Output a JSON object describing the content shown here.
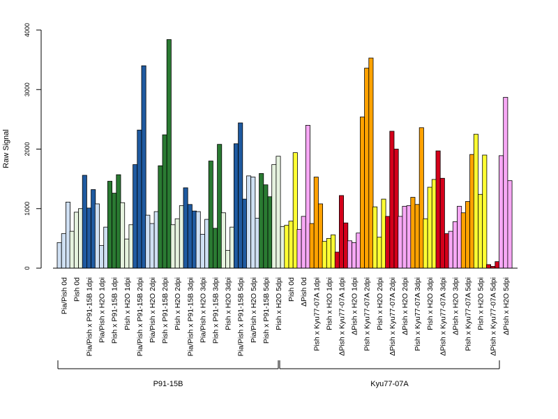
{
  "chart_data": {
    "type": "bar",
    "ylabel": "Raw Signal",
    "ylim": [
      0,
      4000
    ],
    "yticks": [
      0,
      1000,
      2000,
      3000,
      4000
    ],
    "legend": "none",
    "grid": false,
    "groups": [
      {
        "label": "P91-15B",
        "first": 0,
        "last": 15
      },
      {
        "label": "Kyu77-07A",
        "first": 16,
        "last": 31
      }
    ],
    "categories": [
      {
        "label": "Pia/Pish 0d",
        "color": "#cfe0f3",
        "values": [
          430,
          580,
          1110
        ]
      },
      {
        "label": "Pish 0d",
        "color": "#e6f3df",
        "values": [
          620,
          940,
          1000
        ]
      },
      {
        "label": "Pia/Pish x P91-15B 1dpi",
        "color": "#1f5aa0",
        "values": [
          1560,
          1010,
          1320
        ]
      },
      {
        "label": "Pia/Pish x H2O 1dpi",
        "color": "#cfe0f3",
        "values": [
          1080,
          380,
          690
        ]
      },
      {
        "label": "Pish x P91-15B 1dpi",
        "color": "#2a7a32",
        "values": [
          1460,
          1260,
          1570
        ]
      },
      {
        "label": "Pish x H2O 1dpi",
        "color": "#e6f3df",
        "values": [
          1100,
          490,
          730
        ]
      },
      {
        "label": "Pia/Pish x P91-15B 2dpi",
        "color": "#1f5aa0",
        "values": [
          1740,
          2320,
          3400
        ]
      },
      {
        "label": "Pia/Pish x H2O 2dpi",
        "color": "#cfe0f3",
        "values": [
          890,
          750,
          950
        ]
      },
      {
        "label": "Pish x P91-15B 2dpi",
        "color": "#2a7a32",
        "values": [
          1720,
          2240,
          3840
        ]
      },
      {
        "label": "Pish x H2O 2dpi",
        "color": "#e6f3df",
        "values": [
          730,
          830,
          1050
        ]
      },
      {
        "label": "Pia/Pish x P91-15B 3dpi",
        "color": "#1f5aa0",
        "values": [
          1350,
          1070,
          960
        ]
      },
      {
        "label": "Pia/Pish x H2O 3dpi",
        "color": "#cfe0f3",
        "values": [
          950,
          570,
          820
        ]
      },
      {
        "label": "Pish x P91-15B 3dpi",
        "color": "#2a7a32",
        "values": [
          1800,
          670,
          2080
        ]
      },
      {
        "label": "Pish x H2O 3dpi",
        "color": "#e6f3df",
        "values": [
          930,
          300,
          690
        ]
      },
      {
        "label": "Pia/Pish x P91-15B 5dpi",
        "color": "#1f5aa0",
        "values": [
          2090,
          2440,
          1160
        ]
      },
      {
        "label": "Pia/Pish x H2O 5dpi",
        "color": "#cfe0f3",
        "values": [
          1550,
          1530,
          840
        ]
      },
      {
        "label": "Pish x P91-15B 5dpi",
        "color": "#2a7a32",
        "values": [
          1590,
          1400,
          1200
        ]
      },
      {
        "label": "Pish x H2O 5dpi",
        "color": "#e6f3df",
        "values": [
          1740,
          1880,
          700
        ]
      },
      {
        "label": "Pish 0d",
        "color": "#ffff33",
        "values": [
          720,
          790,
          1940
        ]
      },
      {
        "label": "ΔPish 0d",
        "color": "#f7a8f5",
        "values": [
          650,
          870,
          2400
        ]
      },
      {
        "label": "Pish x Kyu77-07A 1dpi",
        "color": "#ffa200",
        "values": [
          750,
          1530,
          1080
        ]
      },
      {
        "label": "Pish x H2O 1dpi",
        "color": "#ffff33",
        "values": [
          450,
          500,
          560
        ]
      },
      {
        "label": "ΔPish x Kyu77-07A 1dpi",
        "color": "#d4001b",
        "values": [
          270,
          1220,
          760
        ]
      },
      {
        "label": "ΔPish x H2O 1dpi",
        "color": "#f7a8f5",
        "values": [
          460,
          430,
          590
        ]
      },
      {
        "label": "Pish x Kyu77-07A 2dpi",
        "color": "#ffa200",
        "values": [
          2540,
          3360,
          3530
        ]
      },
      {
        "label": "Pish x H2O 2dpi",
        "color": "#ffff33",
        "values": [
          1030,
          520,
          1160
        ]
      },
      {
        "label": "ΔPish x Kyu77-07A 2dpi",
        "color": "#d4001b",
        "values": [
          870,
          2300,
          2000
        ]
      },
      {
        "label": "ΔPish x H2O 2dpi",
        "color": "#f7a8f5",
        "values": [
          870,
          1040,
          1050
        ]
      },
      {
        "label": "Pish x Kyu77-07A 3dpi",
        "color": "#ffa200",
        "values": [
          1190,
          1070,
          2360
        ]
      },
      {
        "label": "Pish x H2O 3dpi",
        "color": "#ffff33",
        "values": [
          830,
          1360,
          1490
        ]
      },
      {
        "label": "ΔPish x Kyu77-07A 3dpi",
        "color": "#d4001b",
        "values": [
          1970,
          1510,
          580
        ]
      },
      {
        "label": "ΔPish x H2O 3dpi",
        "color": "#f7a8f5",
        "values": [
          620,
          780,
          1040
        ]
      },
      {
        "label": "Pish x Kyu77-07A 5dpi",
        "color": "#ffa200",
        "values": [
          930,
          1120,
          1910
        ]
      },
      {
        "label": "Pish x H2O 5dpi",
        "color": "#ffff33",
        "values": [
          2250,
          1240,
          1900
        ]
      },
      {
        "label": "ΔPish x Kyu77-07A 5dpi",
        "color": "#d4001b",
        "values": [
          60,
          30,
          110
        ]
      },
      {
        "label": "ΔPish x H2O 5dpi",
        "color": "#f7a8f5",
        "values": [
          1890,
          2870,
          1470
        ]
      }
    ]
  }
}
